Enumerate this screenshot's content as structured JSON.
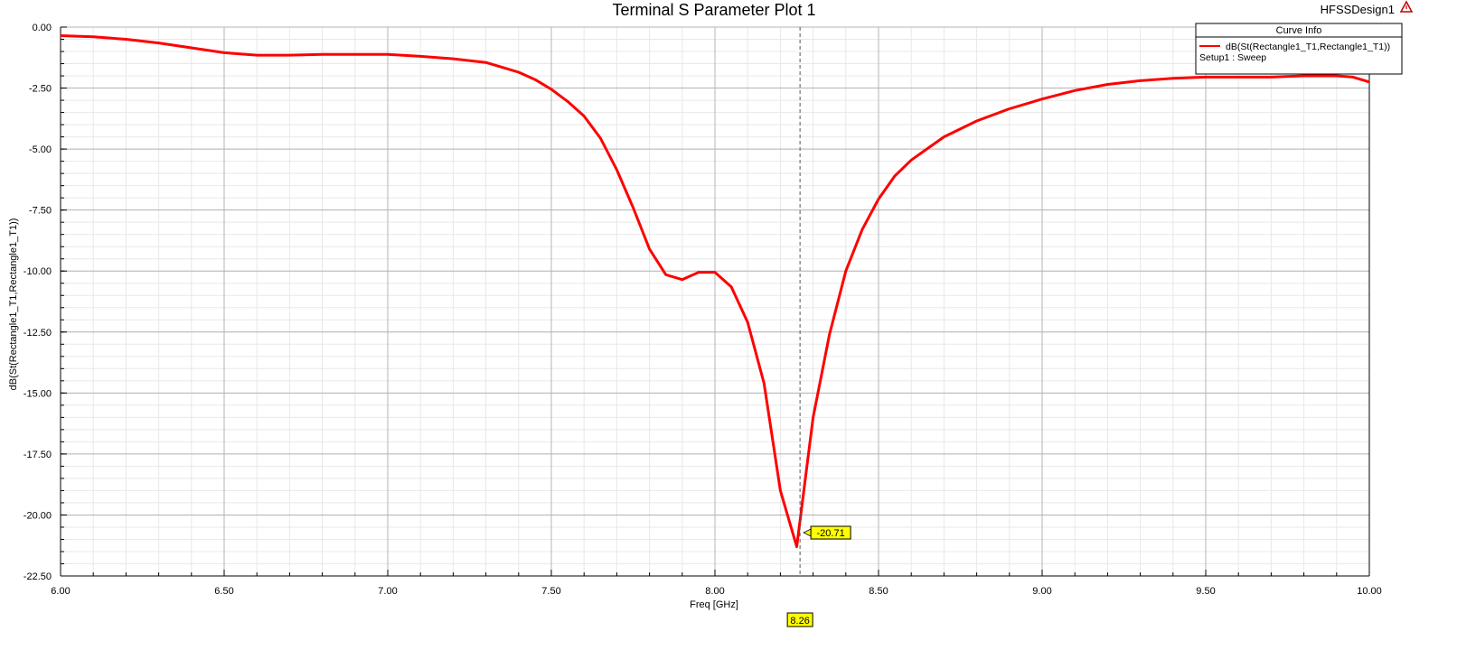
{
  "design_name": "HFSSDesign1",
  "legend": {
    "title": "Curve Info",
    "curve_label": "dB(St(Rectangle1_T1,Rectangle1_T1))",
    "setup_label": "Setup1 : Sweep"
  },
  "marker": {
    "x_value": 8.26,
    "x_label": "8.26",
    "y_label": "-20.71",
    "color": "#ffff00"
  },
  "chart_data": {
    "type": "line",
    "title": "Terminal S Parameter Plot 1",
    "xlabel": "Freq [GHz]",
    "ylabel": "dB(St(Rectangle1_T1,Rectangle1_T1))",
    "xlim": [
      6.0,
      10.0
    ],
    "ylim": [
      -22.5,
      0.0
    ],
    "x_ticks": [
      6.0,
      6.5,
      7.0,
      7.5,
      8.0,
      8.5,
      9.0,
      9.5,
      10.0
    ],
    "x_tick_labels": [
      "6.00",
      "6.50",
      "7.00",
      "7.50",
      "8.00",
      "8.50",
      "9.00",
      "9.50",
      "10.00"
    ],
    "y_ticks": [
      0.0,
      -2.5,
      -5.0,
      -7.5,
      -10.0,
      -12.5,
      -15.0,
      -17.5,
      -20.0,
      -22.5
    ],
    "y_tick_labels": [
      "0.00",
      "-2.50",
      "-5.00",
      "-7.50",
      "-10.00",
      "-12.50",
      "-15.00",
      "-17.50",
      "-20.00",
      "-22.50"
    ],
    "grid": true,
    "legend_position": "top-right",
    "series": [
      {
        "name": "dB(St(Rectangle1_T1,Rectangle1_T1))",
        "color": "#ff0000",
        "x": [
          6.0,
          6.1,
          6.2,
          6.3,
          6.4,
          6.5,
          6.6,
          6.7,
          6.8,
          6.9,
          7.0,
          7.1,
          7.2,
          7.3,
          7.35,
          7.4,
          7.45,
          7.5,
          7.55,
          7.6,
          7.65,
          7.7,
          7.75,
          7.8,
          7.85,
          7.9,
          7.95,
          8.0,
          8.05,
          8.1,
          8.15,
          8.2,
          8.25,
          8.3,
          8.35,
          8.4,
          8.45,
          8.5,
          8.55,
          8.6,
          8.7,
          8.8,
          8.9,
          9.0,
          9.1,
          9.2,
          9.3,
          9.4,
          9.5,
          9.6,
          9.7,
          9.8,
          9.9,
          9.95,
          10.0
        ],
        "y": [
          -0.35,
          -0.4,
          -0.5,
          -0.65,
          -0.85,
          -1.05,
          -1.15,
          -1.15,
          -1.12,
          -1.12,
          -1.12,
          -1.2,
          -1.3,
          -1.45,
          -1.65,
          -1.85,
          -2.15,
          -2.55,
          -3.05,
          -3.65,
          -4.55,
          -5.85,
          -7.4,
          -9.1,
          -10.15,
          -10.35,
          -10.05,
          -10.05,
          -10.65,
          -12.1,
          -14.6,
          -19.0,
          -21.3,
          -16.0,
          -12.6,
          -10.0,
          -8.3,
          -7.05,
          -6.1,
          -5.45,
          -4.5,
          -3.85,
          -3.35,
          -2.95,
          -2.6,
          -2.35,
          -2.2,
          -2.1,
          -2.05,
          -2.05,
          -2.05,
          -2.0,
          -2.0,
          -2.05,
          -2.25
        ]
      }
    ]
  }
}
